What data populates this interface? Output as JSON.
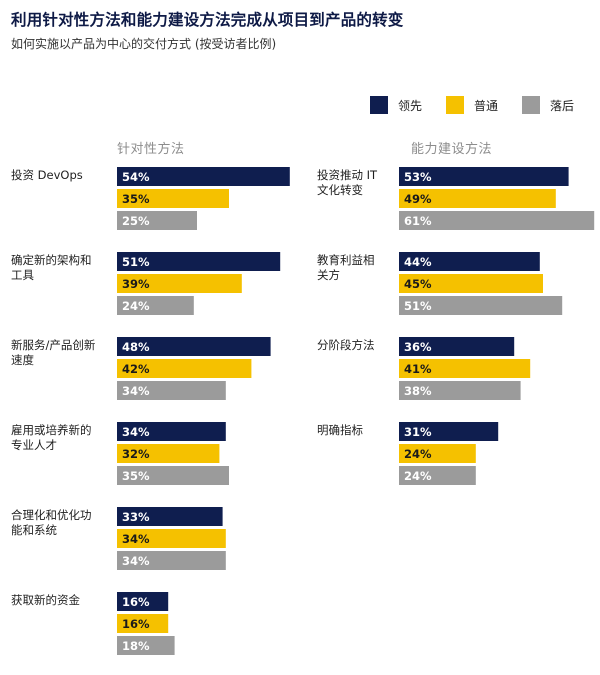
{
  "title": "利用针对性方法和能力建设方法完成从项目到产品的转变",
  "subtitle": "如何实施以产品为中心的交付方式 (按受访者比例)",
  "colors": {
    "leader": "#0f1e4f",
    "average": "#f5c100",
    "laggard": "#9b9b9b"
  },
  "chart_data": {
    "type": "bar",
    "orientation": "horizontal",
    "title": "利用针对性方法和能力建设方法完成从项目到产品的转变",
    "subtitle": "如何实施以产品为中心的交付方式 (按受访者比例)",
    "legend": {
      "placement": "top-right",
      "entries": [
        "领先",
        "普通",
        "落后"
      ]
    },
    "unit": "%",
    "panels": [
      {
        "heading": "针对性方法",
        "categories": [
          "投资 DevOps",
          "确定新的架构和工具",
          "新服务/产品创新速度",
          "雇用或培养新的专业人才",
          "合理化和优化功能和系统",
          "获取新的资金"
        ],
        "category_lines": [
          [
            "投资 DevOps"
          ],
          [
            "确定新的架构和",
            "工具"
          ],
          [
            "新服务/产品创新",
            "速度"
          ],
          [
            "雇用或培养新的",
            "专业人才"
          ],
          [
            "合理化和优化功",
            "能和系统"
          ],
          [
            "获取新的资金"
          ]
        ],
        "series": [
          {
            "name": "领先",
            "values": [
              54,
              51,
              48,
              34,
              33,
              16
            ]
          },
          {
            "name": "普通",
            "values": [
              35,
              39,
              42,
              32,
              34,
              16
            ]
          },
          {
            "name": "落后",
            "values": [
              25,
              24,
              34,
              35,
              34,
              18
            ]
          }
        ]
      },
      {
        "heading": "能力建设方法",
        "categories": [
          "投资推动 IT 文化转变",
          "教育利益相关方",
          "分阶段方法",
          "明确指标"
        ],
        "category_lines": [
          [
            "投资推动 IT",
            "文化转变"
          ],
          [
            "教育利益相",
            "关方"
          ],
          [
            "分阶段方法"
          ],
          [
            "明确指标"
          ]
        ],
        "series": [
          {
            "name": "领先",
            "values": [
              53,
              44,
              36,
              31
            ]
          },
          {
            "name": "普通",
            "values": [
              49,
              45,
              41,
              24
            ]
          },
          {
            "name": "落后",
            "values": [
              61,
              51,
              38,
              24
            ]
          }
        ]
      }
    ]
  }
}
